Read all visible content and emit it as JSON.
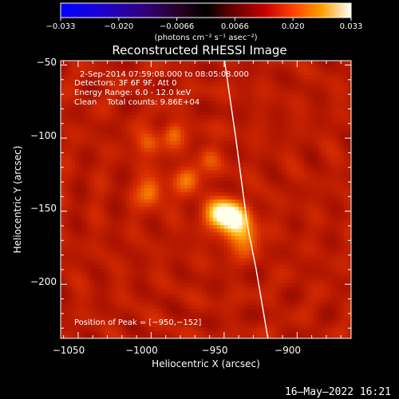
{
  "colorbar": {
    "ticks": [
      "−0.033",
      "−0.020",
      "−0.0066",
      "0.0066",
      "0.020",
      "0.033"
    ],
    "units": "(photons cm⁻² s⁻¹ asec⁻²)"
  },
  "chart_data": {
    "type": "heatmap",
    "title": "Reconstructed RHESSI Image",
    "xlabel": "Heliocentric X (arcsec)",
    "ylabel": "Heliocentric Y (arcsec)",
    "xlim": [
      -1062,
      -863
    ],
    "ylim": [
      -237,
      -47
    ],
    "xticks": [
      -1050,
      -1000,
      -950,
      -900
    ],
    "yticks": [
      -50,
      -100,
      -150,
      -200
    ],
    "xtick_labels": [
      "−1050",
      "−1000",
      "−950",
      "−900"
    ],
    "ytick_labels": [
      "−50",
      "−100",
      "−150",
      "−200"
    ],
    "value_range": [
      -0.033,
      0.033
    ],
    "peak": [
      -950,
      -152
    ],
    "limb_curve": [
      {
        "x": -949.7,
        "y": -47
      },
      {
        "x": -942,
        "y": -100
      },
      {
        "x": -938,
        "y": -130
      },
      {
        "x": -934,
        "y": -160
      },
      {
        "x": -928,
        "y": -190
      },
      {
        "x": -920,
        "y": -237
      }
    ],
    "sources": [
      {
        "x": -950,
        "y": -152,
        "amp": 1.0,
        "sx": 9,
        "sy": 7
      },
      {
        "x": -942,
        "y": -162,
        "amp": 0.55,
        "sx": 7,
        "sy": 9
      },
      {
        "x": -933,
        "y": -168,
        "amp": 0.35,
        "sx": 6,
        "sy": 8
      },
      {
        "x": -1000,
        "y": -137,
        "amp": 0.55,
        "sx": 6,
        "sy": 7
      },
      {
        "x": -975,
        "y": -128,
        "amp": 0.45,
        "sx": 6,
        "sy": 7
      },
      {
        "x": -1002,
        "y": -104,
        "amp": 0.42,
        "sx": 6,
        "sy": 6
      },
      {
        "x": -985,
        "y": -96,
        "amp": 0.4,
        "sx": 5,
        "sy": 6
      },
      {
        "x": -960,
        "y": -112,
        "amp": 0.3,
        "sx": 6,
        "sy": 6
      }
    ],
    "annotations": {
      "time": "2-Sep-2014 07:59:08.000 to 08:05:08.000",
      "detectors": "Detectors: 3F 6F 9F, Att 0",
      "energy": "Energy Range: 6.0 - 12.0 keV",
      "clean": "Clean    Total counts: 9.86E+04",
      "peak_text": "Position of Peak = [−950,−152]"
    }
  },
  "footer": {
    "date": "16–May–2022 16:21"
  }
}
